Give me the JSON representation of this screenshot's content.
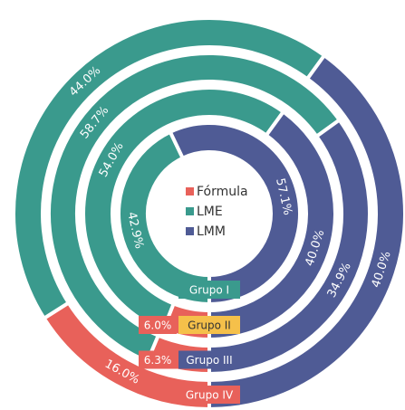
{
  "chart_data": {
    "type": "donut",
    "categories": [
      "Grupo I",
      "Grupo II",
      "Grupo III",
      "Grupo IV"
    ],
    "category_colors": [
      "#3a9a8d",
      "#f5c04a",
      "#4f5b95",
      "#e8615a"
    ],
    "series": [
      {
        "name": "Fórmula",
        "color": "#e8615a",
        "values": [
          null,
          6.0,
          6.3,
          16.0
        ],
        "value_labels": [
          null,
          "6.0%",
          "6.3%",
          "16.0%"
        ]
      },
      {
        "name": "LME",
        "color": "#3a9a8d",
        "values": [
          42.9,
          54.0,
          58.7,
          44.0
        ],
        "value_labels": [
          "42.9%",
          "54.0%",
          "58.7%",
          "44.0%"
        ]
      },
      {
        "name": "LMM",
        "color": "#4f5b95",
        "values": [
          57.1,
          40.0,
          34.9,
          40.0
        ],
        "value_labels": [
          "57.1%",
          "40.0%",
          "34.9%",
          "40.0%"
        ]
      }
    ]
  }
}
